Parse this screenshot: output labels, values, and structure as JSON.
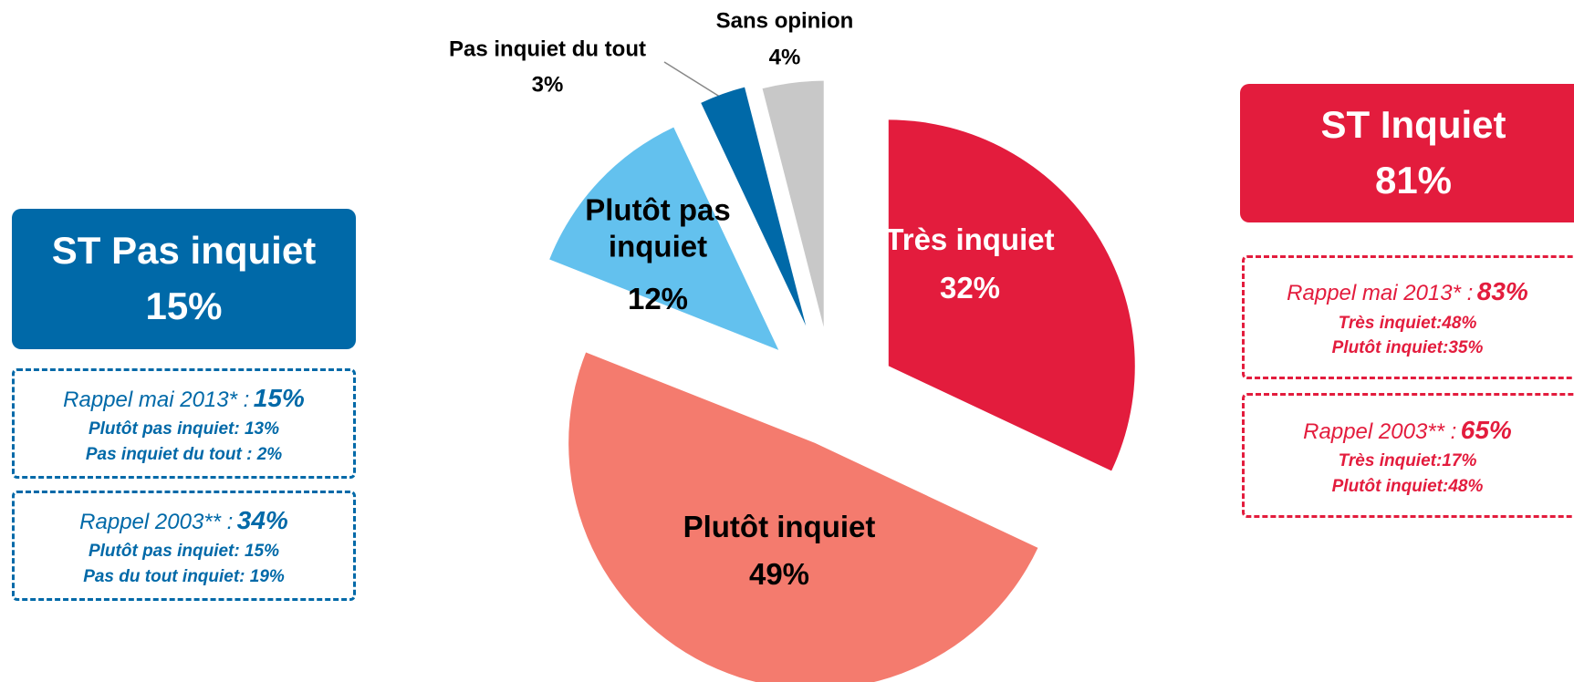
{
  "chart_data": {
    "type": "pie",
    "categories": [
      "Très inquiet",
      "Plutôt inquiet",
      "Plutôt pas inquiet",
      "Pas inquiet du tout",
      "Sans opinion"
    ],
    "values": [
      32,
      49,
      12,
      3,
      4
    ],
    "value_labels": [
      "32%",
      "49%",
      "12%",
      "3%",
      "4%"
    ],
    "colors": [
      "#e31c3d",
      "#f47b6e",
      "#63c1ee",
      "#0069a8",
      "#c8c8c8"
    ]
  },
  "summaries": [
    {
      "title": "ST Pas inquiet",
      "value": "15%",
      "color": "#0069a8",
      "recalls": [
        {
          "label": "Rappel mai 2013* :",
          "value": "15%",
          "lines": [
            "Plutôt pas inquiet: 13%",
            "Pas inquiet du tout : 2%"
          ]
        },
        {
          "label": "Rappel 2003** :",
          "value": "34%",
          "lines": [
            "Plutôt pas inquiet: 15%",
            "Pas du tout inquiet: 19%"
          ]
        }
      ]
    },
    {
      "title": "ST Inquiet",
      "value": "81%",
      "color": "#e31c3d",
      "recalls": [
        {
          "label": "Rappel mai 2013* :",
          "value": "83%",
          "lines": [
            "Très inquiet:48%",
            "Plutôt inquiet:35%"
          ]
        },
        {
          "label": "Rappel 2003** :",
          "value": "65%",
          "lines": [
            "Très inquiet:17%",
            "Plutôt inquiet:48%"
          ]
        }
      ]
    }
  ]
}
